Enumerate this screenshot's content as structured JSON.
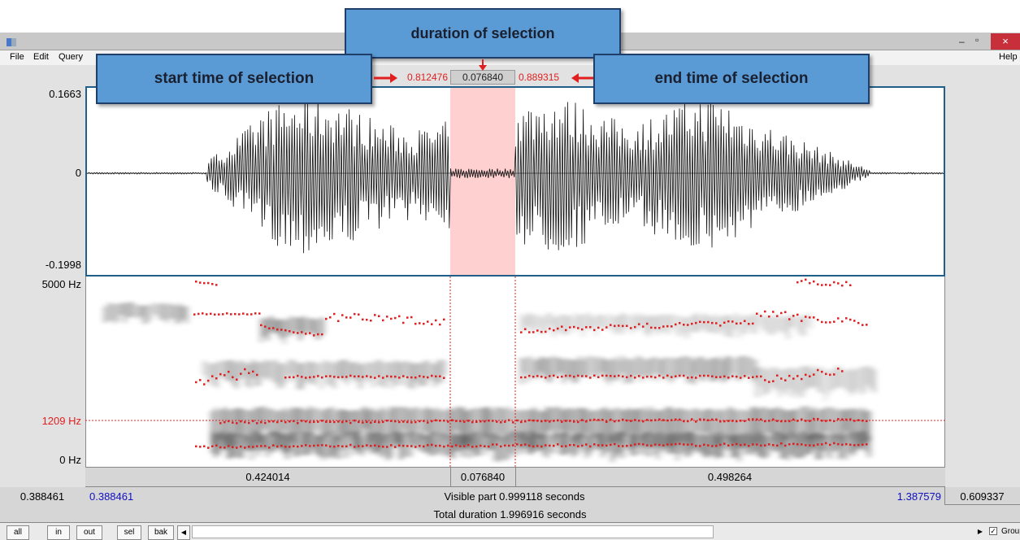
{
  "window": {
    "minimize": "–",
    "maximize": "▫",
    "close": "×"
  },
  "menu": {
    "file": "File",
    "edit": "Edit",
    "query": "Query",
    "help": "Help"
  },
  "selection": {
    "start": "0.812476",
    "duration": "0.076840",
    "end": "0.889315"
  },
  "waveform": {
    "ymax": "0.1663",
    "yzero": "0",
    "ymin": "-0.1998"
  },
  "spectrogram": {
    "top": "5000 Hz",
    "cursor": "1209 Hz",
    "bottom": "0 Hz"
  },
  "time_row": {
    "left": "0.424014",
    "selected": "0.076840",
    "right": "0.498264"
  },
  "visible_row": {
    "left_value": "0.388461",
    "window_start": "0.388461",
    "label": "Visible part 0.999118 seconds",
    "window_end": "1.387579",
    "right_value": "0.609337"
  },
  "total_row": {
    "label": "Total duration 1.996916 seconds"
  },
  "buttons": {
    "all": "all",
    "in": "in",
    "out": "out",
    "sel": "sel",
    "bak": "bak",
    "group": "Group"
  },
  "callouts": {
    "duration": "duration of selection",
    "start": "start time of selection",
    "end": "end time of selection"
  },
  "colors": {
    "accent_blue": "#5b9bd5",
    "selection_pink": "#ffd0d0",
    "formant_red": "#e02020"
  }
}
